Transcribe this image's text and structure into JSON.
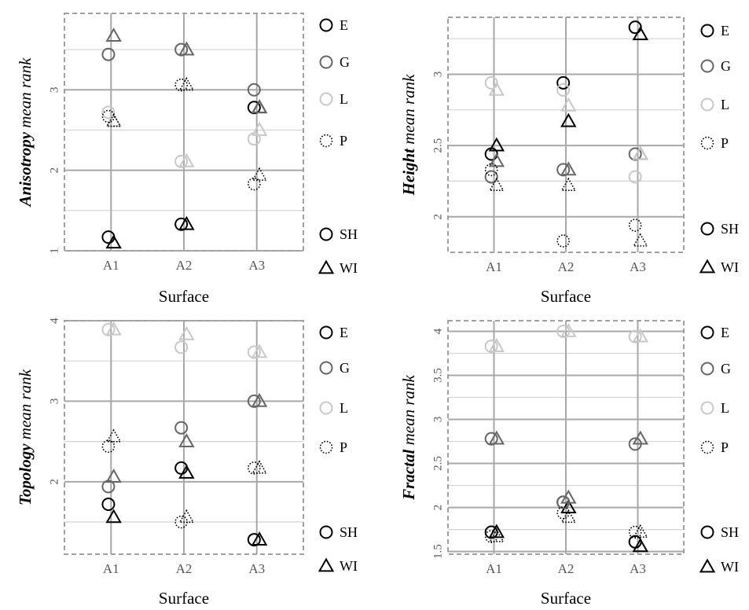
{
  "colors": {
    "E": "#000000",
    "G": "#666666",
    "L": "#c8c8c8",
    "P": "#000000",
    "major_grid": "#a8a8a8",
    "minor_grid": "#d4d4d4",
    "frame": "#a0a0a0",
    "tick_text": "#555555"
  },
  "legend": {
    "groups": [
      {
        "key": "E",
        "label": "E",
        "style": "solid",
        "color_key": "E"
      },
      {
        "key": "G",
        "label": "G",
        "style": "solid",
        "color_key": "G"
      },
      {
        "key": "L",
        "label": "L",
        "style": "solid",
        "color_key": "L"
      },
      {
        "key": "P",
        "label": "P",
        "style": "dotted",
        "color_key": "P"
      }
    ],
    "shapes": [
      {
        "key": "SH",
        "label": "SH",
        "shape": "circle"
      },
      {
        "key": "WI",
        "label": "WI",
        "shape": "triangle"
      }
    ]
  },
  "chart_data": [
    {
      "type": "scatter",
      "ylabel_bold": "Anisotropy",
      "ylabel_rest": " mean rank",
      "xlabel": "Surface",
      "categories": [
        "A1",
        "A2",
        "A3"
      ],
      "ylim": [
        1,
        3.95
      ],
      "yticks": [
        "1",
        "2",
        "3"
      ],
      "ytick_values": [
        1,
        2,
        3
      ],
      "minor_ticks": [
        1.5,
        2.5,
        3.5
      ],
      "series": [
        {
          "group": "E",
          "shape": "SH",
          "values": [
            1.17,
            1.33,
            2.78
          ]
        },
        {
          "group": "E",
          "shape": "WI",
          "values": [
            1.1,
            1.33,
            2.78
          ]
        },
        {
          "group": "G",
          "shape": "SH",
          "values": [
            3.44,
            3.5,
            3.0
          ]
        },
        {
          "group": "G",
          "shape": "WI",
          "values": [
            3.67,
            3.5,
            2.78
          ]
        },
        {
          "group": "L",
          "shape": "SH",
          "values": [
            2.72,
            2.11,
            2.39
          ]
        },
        {
          "group": "L",
          "shape": "WI",
          "values": [
            2.61,
            2.11,
            2.5
          ]
        },
        {
          "group": "P",
          "shape": "SH",
          "values": [
            2.67,
            3.06,
            1.83
          ]
        },
        {
          "group": "P",
          "shape": "WI",
          "values": [
            2.61,
            3.06,
            1.94
          ]
        }
      ]
    },
    {
      "type": "scatter",
      "ylabel_bold": "Height",
      "ylabel_rest": " mean rank",
      "xlabel": "Surface",
      "categories": [
        "A1",
        "A2",
        "A3"
      ],
      "ylim": [
        1.75,
        3.4
      ],
      "yticks": [
        "2",
        "2.5",
        "3"
      ],
      "ytick_values": [
        2,
        2.5,
        3
      ],
      "minor_ticks": [
        2.25,
        2.75,
        3.25
      ],
      "series": [
        {
          "group": "E",
          "shape": "SH",
          "values": [
            2.44,
            2.94,
            3.33
          ]
        },
        {
          "group": "E",
          "shape": "WI",
          "values": [
            2.5,
            2.67,
            3.28
          ]
        },
        {
          "group": "G",
          "shape": "SH",
          "values": [
            2.28,
            2.33,
            2.44
          ]
        },
        {
          "group": "G",
          "shape": "WI",
          "values": [
            2.39,
            2.33,
            2.44
          ]
        },
        {
          "group": "L",
          "shape": "SH",
          "values": [
            2.94,
            2.89,
            2.28
          ]
        },
        {
          "group": "L",
          "shape": "WI",
          "values": [
            2.89,
            2.78,
            2.44
          ]
        },
        {
          "group": "P",
          "shape": "SH",
          "values": [
            2.33,
            1.83,
            1.94
          ]
        },
        {
          "group": "P",
          "shape": "WI",
          "values": [
            2.22,
            2.22,
            1.83
          ]
        }
      ]
    },
    {
      "type": "scatter",
      "ylabel_bold": "Topology",
      "ylabel_rest": " mean rank",
      "xlabel": "Surface",
      "categories": [
        "A1",
        "A2",
        "A3"
      ],
      "ylim": [
        1.1,
        4.0
      ],
      "yticks": [
        "2",
        "3",
        "4"
      ],
      "ytick_values": [
        2,
        3,
        4
      ],
      "minor_ticks": [
        1.5,
        2.5,
        3.5
      ],
      "series": [
        {
          "group": "E",
          "shape": "SH",
          "values": [
            1.72,
            2.17,
            1.28
          ]
        },
        {
          "group": "E",
          "shape": "WI",
          "values": [
            1.56,
            2.11,
            1.28
          ]
        },
        {
          "group": "G",
          "shape": "SH",
          "values": [
            1.94,
            2.67,
            3.0
          ]
        },
        {
          "group": "G",
          "shape": "WI",
          "values": [
            2.06,
            2.5,
            3.0
          ]
        },
        {
          "group": "L",
          "shape": "SH",
          "values": [
            3.89,
            3.67,
            3.61
          ]
        },
        {
          "group": "L",
          "shape": "WI",
          "values": [
            3.89,
            3.83,
            3.61
          ]
        },
        {
          "group": "P",
          "shape": "SH",
          "values": [
            2.44,
            1.5,
            2.17
          ]
        },
        {
          "group": "P",
          "shape": "WI",
          "values": [
            2.56,
            1.56,
            2.17
          ]
        }
      ]
    },
    {
      "type": "scatter",
      "ylabel_bold": "Fractal",
      "ylabel_rest": " mean rank",
      "xlabel": "Surface",
      "categories": [
        "A1",
        "A2",
        "A3"
      ],
      "ylim": [
        1.47,
        4.12
      ],
      "yticks": [
        "1.5",
        "2",
        "2.5",
        "3",
        "3.5",
        "4"
      ],
      "ytick_values": [
        1.5,
        2,
        2.5,
        3,
        3.5,
        4
      ],
      "minor_ticks": [
        1.75,
        2.25,
        2.75,
        3.25,
        3.75
      ],
      "series": [
        {
          "group": "E",
          "shape": "SH",
          "values": [
            1.72,
            2.06,
            1.61
          ]
        },
        {
          "group": "E",
          "shape": "WI",
          "values": [
            1.72,
            2.0,
            1.56
          ]
        },
        {
          "group": "G",
          "shape": "SH",
          "values": [
            2.78,
            2.06,
            2.72
          ]
        },
        {
          "group": "G",
          "shape": "WI",
          "values": [
            2.78,
            2.11,
            2.78
          ]
        },
        {
          "group": "L",
          "shape": "SH",
          "values": [
            3.83,
            4.0,
            3.94
          ]
        },
        {
          "group": "L",
          "shape": "WI",
          "values": [
            3.83,
            4.0,
            3.94
          ]
        },
        {
          "group": "P",
          "shape": "SH",
          "values": [
            1.67,
            1.94,
            1.72
          ]
        },
        {
          "group": "P",
          "shape": "WI",
          "values": [
            1.67,
            1.89,
            1.72
          ]
        }
      ]
    }
  ]
}
